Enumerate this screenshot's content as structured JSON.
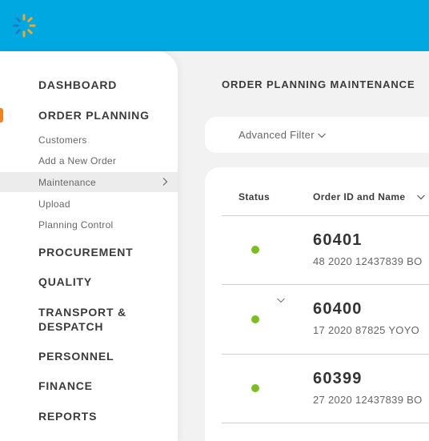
{
  "sidebar": {
    "main_items": [
      {
        "label": "DASHBOARD"
      },
      {
        "label": "ORDER PLANNING"
      },
      {
        "label": "PROCUREMENT"
      },
      {
        "label": "QUALITY"
      },
      {
        "label": "TRANSPORT &"
      },
      {
        "label": "DESPATCH"
      },
      {
        "label": "PERSONNEL"
      },
      {
        "label": "FINANCE"
      },
      {
        "label": "REPORTS"
      }
    ],
    "sub_items": [
      {
        "label": "Customers"
      },
      {
        "label": "Add a New Order"
      },
      {
        "label": "Maintenance"
      },
      {
        "label": "Upload"
      },
      {
        "label": "Planning Control"
      }
    ]
  },
  "main": {
    "title": "ORDER PLANNING MAINTENANCE",
    "filter_label": "Advanced Filter",
    "table": {
      "headers": [
        "Status",
        "Order ID and Name"
      ],
      "rows": [
        {
          "id": "60401",
          "name": "48 2020 12437839 BO"
        },
        {
          "id": "60400",
          "name": "17 2020 87825 YOYO"
        },
        {
          "id": "60399",
          "name": "27 2020 12437839 BO"
        }
      ]
    }
  },
  "colors": {
    "topbar": "#00a8e1",
    "accent": "#f5821f",
    "status_active": "#7cbd1f"
  }
}
